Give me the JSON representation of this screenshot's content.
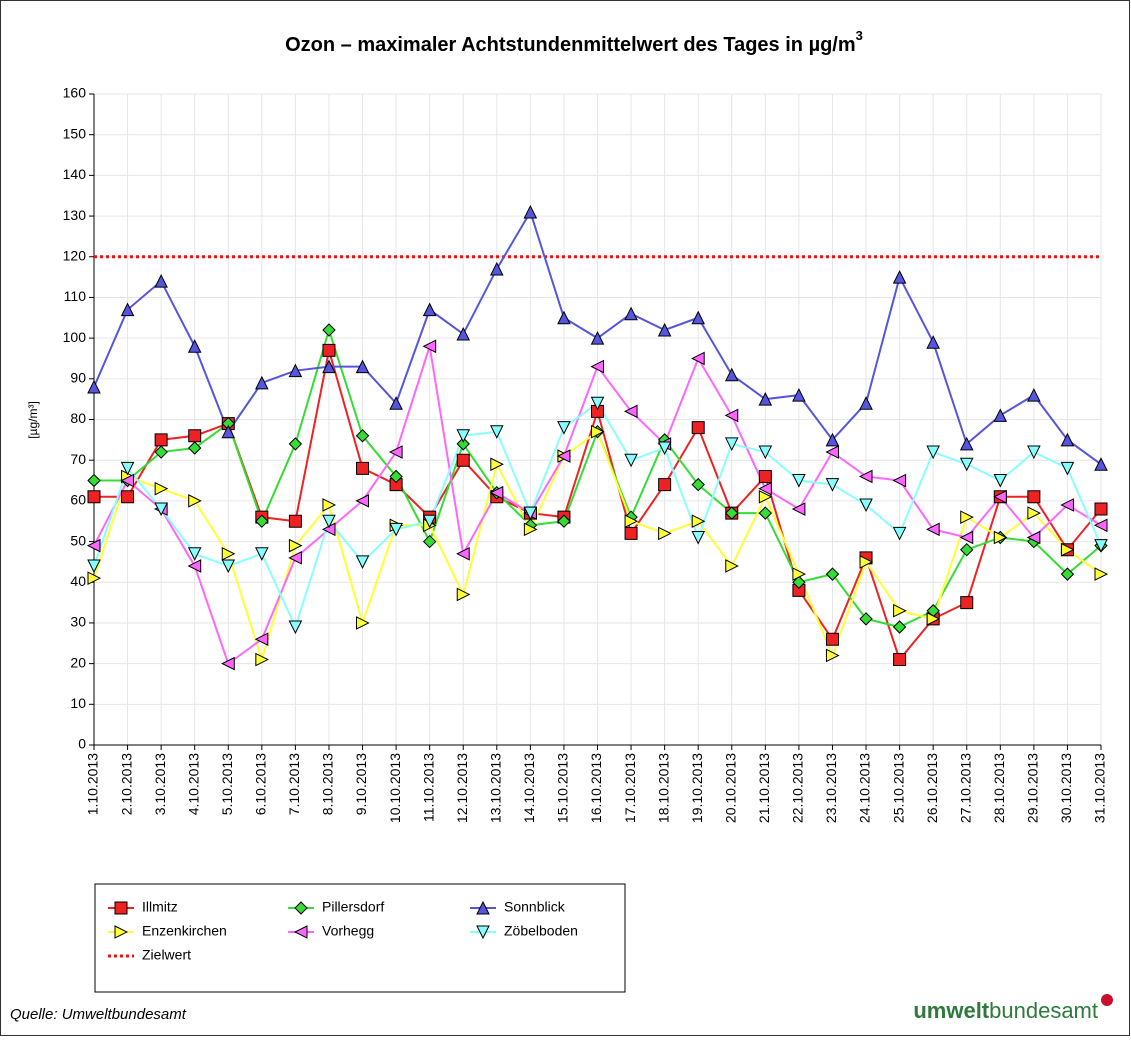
{
  "chart_data": {
    "type": "line",
    "title": "Ozon – maximaler Achtstundenmittelwert des Tages in µg/m",
    "title_superscript": "3",
    "y_label": "[µg/m³]",
    "source": "Quelle: Umweltbundesamt",
    "logo": {
      "bold": "umwelt",
      "regular": "bundesamt"
    },
    "categories": [
      "1.10.2013",
      "2.10.2013",
      "3.10.2013",
      "4.10.2013",
      "5.10.2013",
      "6.10.2013",
      "7.10.2013",
      "8.10.2013",
      "9.10.2013",
      "10.10.2013",
      "11.10.2013",
      "12.10.2013",
      "13.10.2013",
      "14.10.2013",
      "15.10.2013",
      "16.10.2013",
      "17.10.2013",
      "18.10.2013",
      "19.10.2013",
      "20.10.2013",
      "21.10.2013",
      "22.10.2013",
      "23.10.2013",
      "24.10.2013",
      "25.10.2013",
      "26.10.2013",
      "27.10.2013",
      "28.10.2013",
      "29.10.2013",
      "30.10.2013",
      "31.10.2013"
    ],
    "ylim": [
      0,
      160
    ],
    "yticks": [
      0,
      10,
      20,
      30,
      40,
      50,
      60,
      70,
      80,
      90,
      100,
      110,
      120,
      130,
      140,
      150,
      160
    ],
    "grid": true,
    "series": [
      {
        "name": "Illmitz",
        "color": "#ee2222",
        "marker": "square",
        "values": [
          61,
          61,
          75,
          76,
          79,
          56,
          55,
          97,
          68,
          64,
          56,
          70,
          61,
          57,
          56,
          82,
          52,
          64,
          78,
          57,
          66,
          38,
          26,
          46,
          21,
          31,
          35,
          61,
          61,
          48,
          58
        ]
      },
      {
        "name": "Pillersdorf",
        "color": "#33dd33",
        "marker": "diamond",
        "values": [
          65,
          65,
          72,
          73,
          79,
          55,
          74,
          102,
          76,
          66,
          50,
          74,
          62,
          54,
          55,
          77,
          56,
          75,
          64,
          57,
          57,
          40,
          42,
          31,
          29,
          33,
          48,
          51,
          50,
          42,
          49
        ]
      },
      {
        "name": "Sonnblick",
        "color": "#5555dd",
        "marker": "up",
        "values": [
          88,
          107,
          114,
          98,
          77,
          89,
          92,
          93,
          93,
          84,
          107,
          101,
          117,
          131,
          105,
          100,
          106,
          102,
          105,
          91,
          85,
          86,
          75,
          84,
          115,
          99,
          74,
          81,
          86,
          75,
          69
        ]
      },
      {
        "name": "Enzenkirchen",
        "color": "#ffff33",
        "marker": "right",
        "values": [
          41,
          66,
          63,
          60,
          47,
          21,
          49,
          59,
          30,
          54,
          54,
          37,
          69,
          53,
          71,
          77,
          55,
          52,
          55,
          44,
          61,
          42,
          22,
          45,
          33,
          31,
          56,
          51,
          57,
          48,
          42
        ]
      },
      {
        "name": "Vorhegg",
        "color": "#ff66ff",
        "marker": "left",
        "values": [
          49,
          65,
          58,
          44,
          20,
          26,
          46,
          53,
          60,
          72,
          98,
          47,
          62,
          57,
          71,
          93,
          82,
          74,
          95,
          81,
          63,
          58,
          72,
          66,
          65,
          53,
          51,
          61,
          51,
          59,
          54
        ]
      },
      {
        "name": "Zöbelboden",
        "color": "#88ffff",
        "marker": "down",
        "values": [
          44,
          68,
          58,
          47,
          44,
          47,
          29,
          55,
          45,
          53,
          55,
          76,
          77,
          57,
          78,
          84,
          70,
          73,
          51,
          74,
          72,
          65,
          64,
          59,
          52,
          72,
          69,
          65,
          72,
          68,
          49
        ]
      }
    ],
    "target": {
      "name": "Zielwert",
      "value": 120,
      "color": "#ee1111"
    }
  }
}
